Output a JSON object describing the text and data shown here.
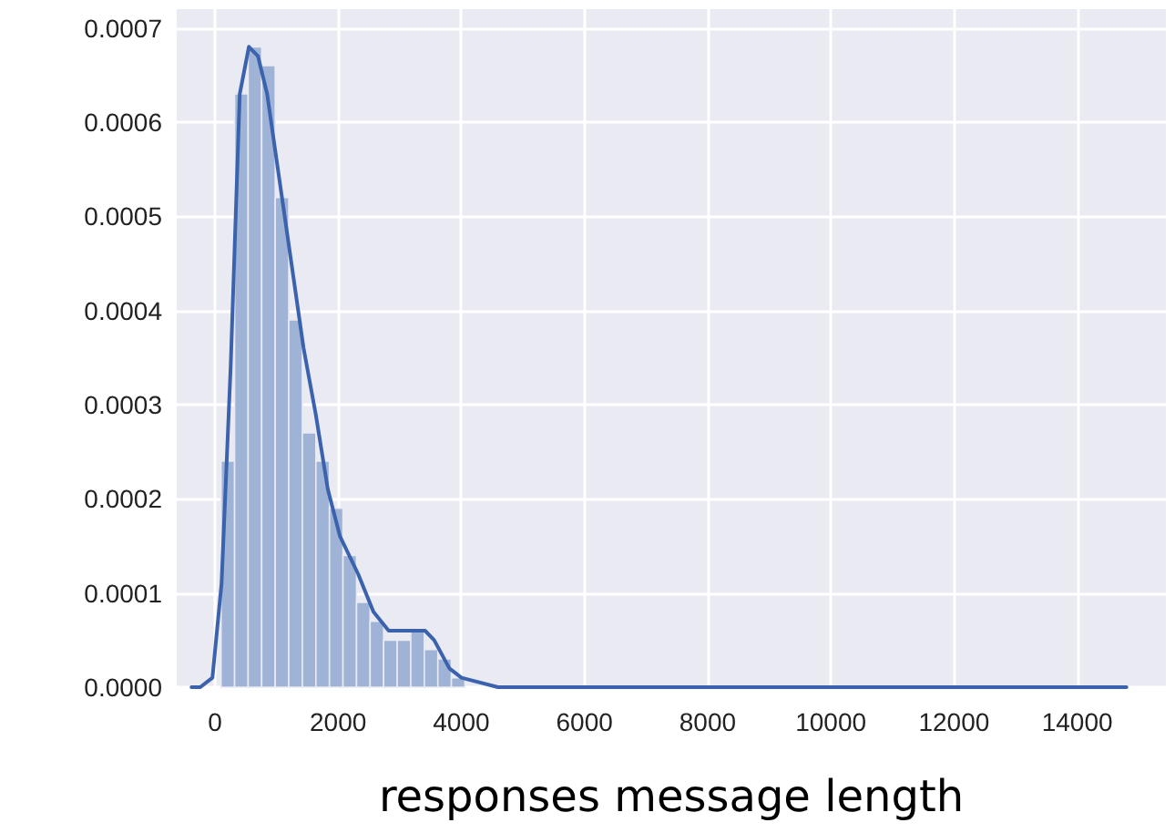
{
  "chart_data": {
    "type": "histogram",
    "xlabel": "responses message length",
    "xlim": [
      -620,
      15440
    ],
    "ylim": [
      0,
      0.00072
    ],
    "xticks": [
      0,
      2000,
      4000,
      6000,
      8000,
      10000,
      12000,
      14000
    ],
    "yticks": [
      {
        "value": 0,
        "label": "0.0000"
      },
      {
        "value": 0.0001,
        "label": "0.0001"
      },
      {
        "value": 0.0002,
        "label": "0.0002"
      },
      {
        "value": 0.0003,
        "label": "0.0003"
      },
      {
        "value": 0.0004,
        "label": "0.0004"
      },
      {
        "value": 0.0005,
        "label": "0.0005"
      },
      {
        "value": 0.0006,
        "label": "0.0006"
      },
      {
        "value": 0.0007,
        "label": "0.0007"
      }
    ],
    "grid": true,
    "series": [
      {
        "color": "#9fb3d6",
        "bins": [
          100,
          320,
          540,
          760,
          980,
          1200,
          1420,
          1640,
          1860,
          2080,
          2300,
          2520,
          2740,
          2960,
          3180,
          3400,
          3620,
          3840,
          4060
        ],
        "values": [
          0.00024,
          0.00063,
          0.00068,
          0.00066,
          0.00052,
          0.00039,
          0.00027,
          0.00024,
          0.00019,
          0.00014,
          9e-05,
          7e-05,
          5e-05,
          5e-05,
          6e-05,
          4e-05,
          3e-05,
          1e-05
        ]
      },
      {
        "type": "line",
        "color": "#3b62ad",
        "x": [
          -380,
          -237,
          -40,
          108,
          256,
          404,
          552,
          700,
          848,
          1045,
          1243,
          1440,
          1637,
          1834,
          2032,
          2327,
          2574,
          2821,
          3116,
          3412,
          3560,
          3807,
          4004,
          4596,
          5976,
          8000,
          10000,
          12000,
          14000,
          14800
        ],
        "values": [
          0,
          0,
          1e-05,
          0.00011,
          0.00034,
          0.00063,
          0.00068,
          0.00067,
          0.00063,
          0.00054,
          0.00045,
          0.00036,
          0.00029,
          0.00021,
          0.00016,
          0.00012,
          8e-05,
          6e-05,
          6e-05,
          6e-05,
          5e-05,
          2e-05,
          1e-05,
          0,
          0,
          0,
          0,
          0,
          0,
          0
        ]
      }
    ]
  }
}
